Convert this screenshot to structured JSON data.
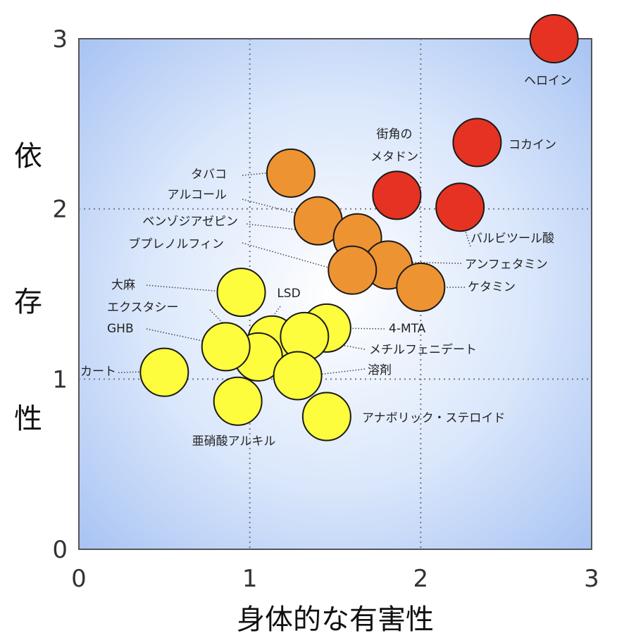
{
  "chart_data": {
    "type": "scatter",
    "title": "",
    "xlabel": "身体的な有害性",
    "ylabel": "依存性",
    "xlim": [
      0,
      3
    ],
    "ylim": [
      0,
      3
    ],
    "xticks": [
      "0",
      "1",
      "2",
      "3"
    ],
    "yticks": [
      "0",
      "1",
      "2",
      "3"
    ],
    "grid": true,
    "legend": "none",
    "colors": {
      "red": "#e63222",
      "orange": "#ee9332",
      "yellow": "#fdfd3e"
    },
    "points": [
      {
        "label": "ヘロイン",
        "x": 2.78,
        "y": 3.0,
        "color": "red"
      },
      {
        "label": "コカイン",
        "x": 2.33,
        "y": 2.39,
        "color": "red"
      },
      {
        "label": "街角の\nメタドン",
        "x": 1.86,
        "y": 2.08,
        "color": "red"
      },
      {
        "label": "バルビツール酸",
        "x": 2.23,
        "y": 2.01,
        "color": "red"
      },
      {
        "label": "タバコ",
        "x": 1.24,
        "y": 2.21,
        "color": "orange"
      },
      {
        "label": "アルコール",
        "x": 1.4,
        "y": 1.93,
        "color": "orange"
      },
      {
        "label": "ベンゾジアゼピン",
        "x": 1.63,
        "y": 1.83,
        "color": "orange"
      },
      {
        "label": "アンフェタミン",
        "x": 1.81,
        "y": 1.67,
        "color": "orange"
      },
      {
        "label": "ブプレノルフィン",
        "x": 1.6,
        "y": 1.64,
        "color": "orange"
      },
      {
        "label": "ケタミン",
        "x": 2.0,
        "y": 1.54,
        "color": "orange"
      },
      {
        "label": "大麻",
        "x": 0.95,
        "y": 1.51,
        "color": "yellow"
      },
      {
        "label": "LSD",
        "x": 1.13,
        "y": 1.23,
        "color": "yellow"
      },
      {
        "label": "4-MTA",
        "x": 1.45,
        "y": 1.3,
        "color": "yellow"
      },
      {
        "label": "メチルフェニデート",
        "x": 1.32,
        "y": 1.25,
        "color": "yellow"
      },
      {
        "label": "エクスタシー",
        "x": 1.05,
        "y": 1.13,
        "color": "yellow"
      },
      {
        "label": "GHB",
        "x": 0.86,
        "y": 1.19,
        "color": "yellow"
      },
      {
        "label": "溶剤",
        "x": 1.28,
        "y": 1.02,
        "color": "yellow"
      },
      {
        "label": "カート",
        "x": 0.5,
        "y": 1.04,
        "color": "yellow"
      },
      {
        "label": "亜硝酸アルキル",
        "x": 0.93,
        "y": 0.87,
        "color": "yellow"
      },
      {
        "label": "アナボリック・ステロイド",
        "x": 1.45,
        "y": 0.78,
        "color": "yellow"
      }
    ]
  }
}
